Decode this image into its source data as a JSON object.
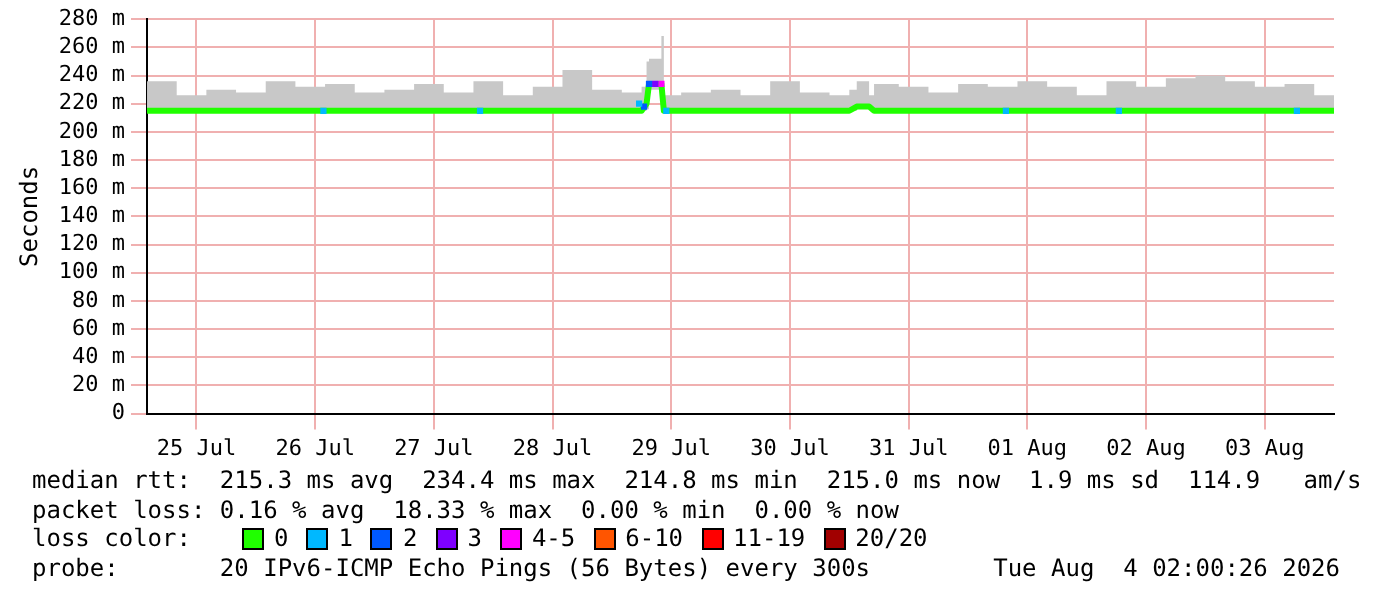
{
  "chart_data": {
    "type": "line",
    "ylabel": "Seconds",
    "legend_title": "loss color:",
    "legend": "bottom",
    "grid": true,
    "marker": "none",
    "line_style": "solid",
    "xlim": [
      "2026-07-25T02:00",
      "2026-08-04T02:00"
    ],
    "xticks": [
      {
        "value": "2026-07-25T12:00",
        "label": "25 Jul"
      },
      {
        "value": "2026-07-26T12:00",
        "label": "26 Jul"
      },
      {
        "value": "2026-07-27T12:00",
        "label": "27 Jul"
      },
      {
        "value": "2026-07-28T12:00",
        "label": "28 Jul"
      },
      {
        "value": "2026-07-29T12:00",
        "label": "29 Jul"
      },
      {
        "value": "2026-07-30T12:00",
        "label": "30 Jul"
      },
      {
        "value": "2026-07-31T12:00",
        "label": "31 Jul"
      },
      {
        "value": "2026-08-01T12:00",
        "label": "01 Aug"
      },
      {
        "value": "2026-08-02T12:00",
        "label": "02 Aug"
      },
      {
        "value": "2026-08-03T12:00",
        "label": "03 Aug"
      }
    ],
    "ylim": [
      0,
      280
    ],
    "yticks": [
      0,
      {
        "value": 20,
        "label": "20 m"
      },
      {
        "value": 40,
        "label": "40 m"
      },
      {
        "value": 60,
        "label": "60 m"
      },
      {
        "value": 80,
        "label": "80 m"
      },
      {
        "value": 100,
        "label": "100 m"
      },
      {
        "value": 120,
        "label": "120 m"
      },
      {
        "value": 140,
        "label": "140 m"
      },
      {
        "value": 160,
        "label": "160 m"
      },
      {
        "value": 180,
        "label": "180 m"
      },
      {
        "value": 200,
        "label": "200 m"
      },
      {
        "value": 220,
        "label": "220 m"
      },
      {
        "value": 240,
        "label": "240 m"
      },
      {
        "value": 260,
        "label": "260 m"
      },
      {
        "value": 280,
        "label": "280 m"
      }
    ],
    "series": [
      {
        "name": "0",
        "color": "#20ff00",
        "x": [
          "2026-07-25T02:00",
          "2026-07-25T08:00",
          "2026-07-25T14:00",
          "2026-07-25T20:00",
          "2026-07-26T02:00",
          "2026-07-26T08:00",
          "2026-07-26T14:00",
          "2026-07-26T20:00",
          "2026-07-27T02:00",
          "2026-07-27T08:00",
          "2026-07-27T14:00",
          "2026-07-27T20:00",
          "2026-07-28T02:00",
          "2026-07-28T08:00",
          "2026-07-28T14:00",
          "2026-07-28T20:00",
          "2026-07-29T02:00",
          "2026-07-29T06:00",
          "2026-07-29T07:00",
          "2026-07-29T07:30",
          "2026-07-29T10:00",
          "2026-07-29T10:30",
          "2026-07-29T14:00",
          "2026-07-29T20:00",
          "2026-07-30T02:00",
          "2026-07-30T08:00",
          "2026-07-30T14:00",
          "2026-07-30T20:00",
          "2026-07-31T00:00",
          "2026-07-31T01:30",
          "2026-07-31T04:00",
          "2026-07-31T05:00",
          "2026-07-31T10:00",
          "2026-07-31T16:00",
          "2026-07-31T22:00",
          "2026-08-01T04:00",
          "2026-08-01T10:00",
          "2026-08-01T16:00",
          "2026-08-01T22:00",
          "2026-08-02T04:00",
          "2026-08-02T10:00",
          "2026-08-02T16:00",
          "2026-08-02T22:00",
          "2026-08-03T04:00",
          "2026-08-03T10:00",
          "2026-08-03T16:00",
          "2026-08-03T22:00",
          "2026-08-04T02:00"
        ],
        "values": [
          215,
          215,
          215,
          215,
          215,
          215,
          215,
          215,
          215,
          215,
          215,
          215,
          215,
          215,
          215,
          215,
          215,
          215,
          220,
          234,
          234,
          215,
          215,
          215,
          215,
          215,
          215,
          215,
          215,
          218,
          218,
          215,
          215,
          215,
          215,
          215,
          215,
          215,
          215,
          215,
          215,
          215,
          215,
          215,
          215,
          215,
          215,
          215
        ],
        "lower": [
          215,
          215,
          215,
          215,
          215,
          215,
          215,
          215,
          215,
          215,
          215,
          215,
          215,
          215,
          215,
          215,
          215,
          215,
          216,
          230,
          230,
          215,
          215,
          215,
          215,
          215,
          215,
          215,
          215,
          217,
          217,
          215,
          215,
          215,
          215,
          215,
          215,
          215,
          215,
          215,
          215,
          215,
          215,
          215,
          215,
          215,
          215,
          215
        ],
        "upper": [
          236,
          226,
          230,
          228,
          236,
          232,
          234,
          228,
          230,
          234,
          228,
          236,
          226,
          232,
          244,
          230,
          228,
          232,
          250,
          252,
          268,
          226,
          228,
          230,
          226,
          236,
          228,
          226,
          230,
          236,
          226,
          234,
          232,
          228,
          234,
          232,
          236,
          232,
          226,
          236,
          232,
          238,
          240,
          236,
          232,
          234,
          226,
          226
        ]
      },
      {
        "name": "1",
        "color": "#00b8ff",
        "type": "scatter",
        "marker": "square",
        "x": [
          "2026-07-26T13:40",
          "2026-07-27T21:20",
          "2026-07-29T05:30",
          "2026-07-29T11:00",
          "2026-08-01T07:40",
          "2026-08-02T06:30",
          "2026-08-03T18:30"
        ],
        "values": [
          215,
          215,
          220,
          215,
          215,
          215,
          215
        ]
      },
      {
        "name": "2",
        "color": "#0059ff",
        "type": "scatter",
        "marker": "square",
        "x": [
          "2026-07-29T06:30",
          "2026-07-29T07:30"
        ],
        "values": [
          218,
          234
        ]
      },
      {
        "name": "3",
        "color": "#7e00ff",
        "type": "scatter",
        "marker": "square",
        "x": [
          "2026-07-29T08:45"
        ],
        "values": [
          234
        ]
      },
      {
        "name": "4-5",
        "color": "#ff00ff",
        "type": "scatter",
        "marker": "square",
        "x": [
          "2026-07-29T10:00"
        ],
        "values": [
          234
        ]
      },
      {
        "name": "6-10",
        "color": "#ff5500",
        "type": "scatter",
        "marker": "square"
      },
      {
        "name": "11-19",
        "color": "#ff0000",
        "type": "scatter",
        "marker": "square"
      },
      {
        "name": "20/20",
        "color": "#a10000",
        "type": "scatter",
        "marker": "square"
      }
    ],
    "annotations": [
      "median rtt:  215.3 ms avg  234.4 ms max  214.8 ms min  215.0 ms now  1.9 ms sd  114.9   am/s",
      "packet loss: 0.16 % avg  18.33 % max  0.00 % min  0.00 % now",
      "probe:       20 IPv6-ICMP Echo Pings (56 Bytes) every 300s",
      "Tue Aug  4 02:00:26 2026"
    ]
  }
}
